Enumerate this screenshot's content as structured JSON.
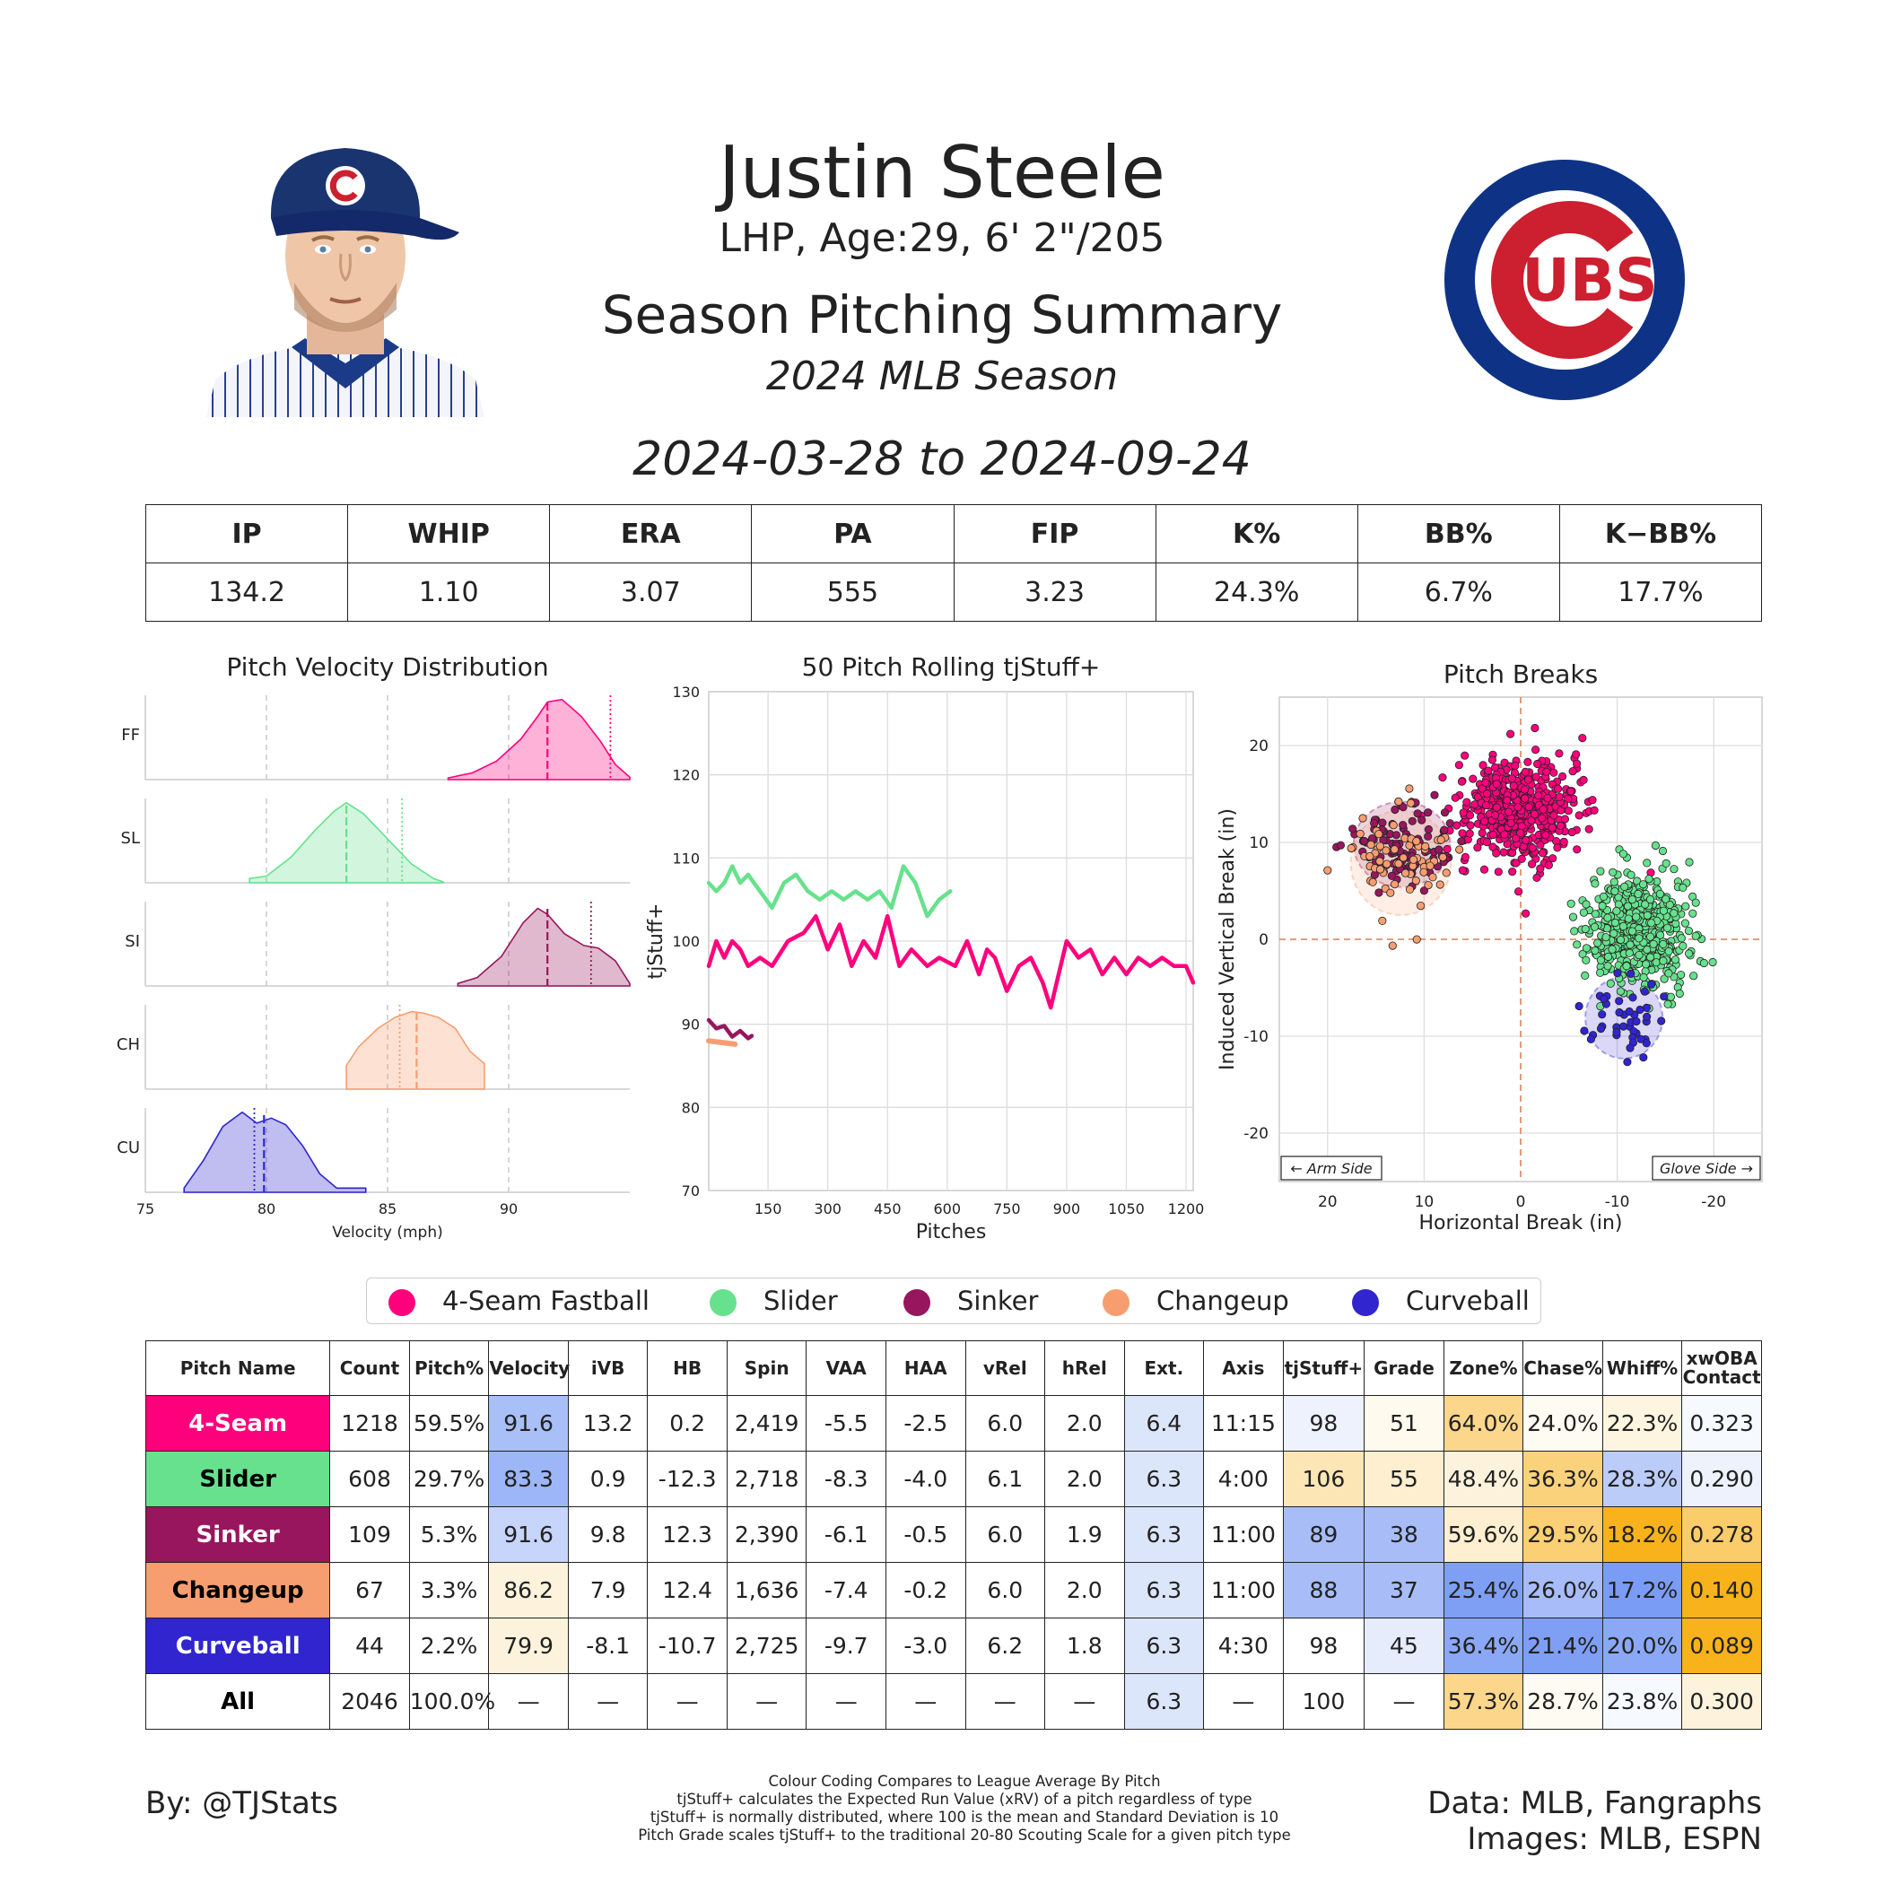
{
  "header": {
    "player_name": "Justin Steele",
    "bio": "LHP, Age:29, 6' 2\"/205",
    "title": "Season Pitching Summary",
    "season": "2024 MLB Season",
    "date_range": "2024-03-28 to 2024-09-24",
    "team_logo_text": "UBS"
  },
  "season_stats": {
    "headers": [
      "IP",
      "WHIP",
      "ERA",
      "PA",
      "FIP",
      "K%",
      "BB%",
      "K−BB%"
    ],
    "values": [
      "134.2",
      "1.10",
      "3.07",
      "555",
      "3.23",
      "24.3%",
      "6.7%",
      "17.7%"
    ]
  },
  "colors": {
    "FF": "#ff007d",
    "SL": "#67e18d",
    "SI": "#98165d",
    "CH": "#f79e70",
    "CU": "#3025ce"
  },
  "chart_data": [
    {
      "type": "area",
      "title": "Pitch Velocity Distribution",
      "xlabel": "Velocity (mph)",
      "ylabel": "",
      "xlim": [
        75,
        95
      ],
      "xticks": [
        "75",
        "80",
        "85",
        "90"
      ],
      "grid": true,
      "series": [
        {
          "name": "FF",
          "color": "#ff007d",
          "x": [
            87.5,
            88.5,
            89.5,
            90.5,
            91.2,
            91.6,
            92.2,
            93.0,
            93.8,
            94.4,
            95.0
          ],
          "y": [
            0.02,
            0.08,
            0.22,
            0.48,
            0.75,
            0.92,
            0.95,
            0.75,
            0.45,
            0.18,
            0.03
          ],
          "mean": 91.6,
          "league_avg": 94.2
        },
        {
          "name": "SL",
          "color": "#67e18d",
          "x": [
            79.3,
            80.0,
            81.0,
            82.0,
            82.8,
            83.3,
            84.0,
            85.0,
            86.0,
            86.9,
            87.3
          ],
          "y": [
            0.05,
            0.08,
            0.3,
            0.62,
            0.85,
            0.95,
            0.82,
            0.52,
            0.22,
            0.05,
            0.01
          ],
          "mean": 83.3,
          "league_avg": 85.6
        },
        {
          "name": "SI",
          "color": "#98165d",
          "x": [
            87.9,
            88.7,
            89.7,
            90.6,
            91.2,
            91.6,
            92.3,
            93.1,
            93.7,
            94.4,
            95.0
          ],
          "y": [
            0.03,
            0.1,
            0.35,
            0.75,
            0.92,
            0.85,
            0.62,
            0.48,
            0.45,
            0.3,
            0.03
          ],
          "mean": 91.6,
          "league_avg": 93.4
        },
        {
          "name": "CH",
          "color": "#f79e70",
          "x": [
            83.3,
            83.8,
            84.6,
            85.3,
            86.0,
            86.5,
            87.1,
            87.8,
            88.4,
            89.0
          ],
          "y": [
            0.28,
            0.5,
            0.72,
            0.85,
            0.92,
            0.9,
            0.85,
            0.72,
            0.45,
            0.3
          ],
          "mean": 86.2,
          "league_avg": 85.5
        },
        {
          "name": "CU",
          "color": "#3025ce",
          "x": [
            76.6,
            77.4,
            78.2,
            79.0,
            79.6,
            80.2,
            80.8,
            81.5,
            82.2,
            82.9,
            84.1
          ],
          "y": [
            0.05,
            0.38,
            0.78,
            0.95,
            0.82,
            0.88,
            0.8,
            0.55,
            0.22,
            0.05,
            0.05
          ],
          "mean": 79.9,
          "league_avg": 79.5
        }
      ]
    },
    {
      "type": "line",
      "title": "50 Pitch Rolling tjStuff+",
      "xlabel": "Pitches",
      "ylabel": "tjStuff+",
      "xlim": [
        1,
        1218
      ],
      "ylim": [
        70,
        130
      ],
      "xticks": [
        "150",
        "300",
        "450",
        "600",
        "750",
        "900",
        "1050",
        "1200"
      ],
      "yticks": [
        "70",
        "80",
        "90",
        "100",
        "110",
        "120",
        "130"
      ],
      "grid": true,
      "series": [
        {
          "name": "FF",
          "color": "#ff007d",
          "x": [
            1,
            20,
            40,
            60,
            80,
            100,
            130,
            160,
            200,
            240,
            270,
            300,
            330,
            360,
            390,
            420,
            450,
            480,
            510,
            550,
            580,
            620,
            650,
            680,
            700,
            720,
            750,
            780,
            810,
            840,
            860,
            880,
            900,
            930,
            960,
            990,
            1020,
            1050,
            1080,
            1110,
            1140,
            1170,
            1200,
            1218
          ],
          "y": [
            97,
            100,
            98,
            100,
            99,
            97,
            98,
            97,
            100,
            101,
            103,
            99,
            102,
            97,
            100,
            98,
            103,
            97,
            99,
            97,
            98,
            97,
            100,
            96,
            99,
            98,
            94,
            97,
            98,
            95,
            92,
            96,
            100,
            98,
            99,
            96,
            98,
            96,
            98,
            97,
            98,
            97,
            97,
            95
          ]
        },
        {
          "name": "SL",
          "color": "#67e18d",
          "x": [
            1,
            20,
            40,
            60,
            80,
            100,
            130,
            160,
            190,
            220,
            250,
            280,
            310,
            340,
            370,
            400,
            430,
            460,
            490,
            520,
            550,
            580,
            608
          ],
          "y": [
            107,
            106,
            107,
            109,
            107,
            108,
            106,
            104,
            107,
            108,
            106,
            105,
            106,
            105,
            106,
            105,
            106,
            104,
            109,
            107,
            103,
            105,
            106
          ]
        },
        {
          "name": "SI",
          "color": "#98165d",
          "x": [
            1,
            20,
            40,
            60,
            80,
            100,
            109
          ],
          "y": [
            90.5,
            89.5,
            89.8,
            88.5,
            89.2,
            88.3,
            88.6
          ]
        },
        {
          "name": "CH",
          "color": "#f79e70",
          "x": [
            1,
            67
          ],
          "y": [
            88,
            87.6
          ]
        }
      ]
    },
    {
      "type": "scatter",
      "title": "Pitch Breaks",
      "xlabel": "Horizontal Break (in)",
      "ylabel": "Induced Vertical Break (in)",
      "xlim": [
        25,
        -25
      ],
      "ylim": [
        -25,
        25
      ],
      "xticks": [
        "20",
        "10",
        "0",
        "-10",
        "-20"
      ],
      "yticks": [
        "20",
        "10",
        "0",
        "-10",
        "-20"
      ],
      "annotations": [
        "← Arm Side",
        "Glove Side →"
      ],
      "grid": true,
      "series": [
        {
          "name": "FF",
          "color": "#ff007d",
          "center": [
            0.2,
            13.2
          ],
          "spread": [
            3.2,
            2.6
          ],
          "count": 1218
        },
        {
          "name": "SL",
          "color": "#67e18d",
          "center": [
            -12.3,
            0.9
          ],
          "spread": [
            2.6,
            2.9
          ],
          "count": 608
        },
        {
          "name": "SI",
          "color": "#98165d",
          "center": [
            12.3,
            9.8
          ],
          "spread": [
            2.5,
            2.2
          ],
          "count": 109
        },
        {
          "name": "CH",
          "color": "#f79e70",
          "center": [
            12.4,
            7.9
          ],
          "spread": [
            2.6,
            2.7
          ],
          "count": 67
        },
        {
          "name": "CU",
          "color": "#3025ce",
          "center": [
            -10.7,
            -8.1
          ],
          "spread": [
            2.0,
            2.1
          ],
          "count": 44
        }
      ]
    }
  ],
  "legend": [
    {
      "label": "4-Seam Fastball",
      "color": "#ff007d"
    },
    {
      "label": "Slider",
      "color": "#67e18d"
    },
    {
      "label": "Sinker",
      "color": "#98165d"
    },
    {
      "label": "Changeup",
      "color": "#f79e70"
    },
    {
      "label": "Curveball",
      "color": "#3025ce"
    }
  ],
  "pitch_table": {
    "headers": [
      "Pitch Name",
      "Count",
      "Pitch%",
      "Velocity",
      "iVB",
      "HB",
      "Spin",
      "VAA",
      "HAA",
      "vRel",
      "hRel",
      "Ext.",
      "Axis",
      "tjStuff+",
      "Grade",
      "Zone%",
      "Chase%",
      "Whiff%",
      "xwOBA Contact"
    ],
    "rows": [
      {
        "name": "4-Seam",
        "bg": "#ff007d",
        "fg": "#ffffff",
        "cells": [
          "1218",
          "59.5%",
          "91.6",
          "13.2",
          "0.2",
          "2,419",
          "-5.5",
          "-2.5",
          "6.0",
          "2.0",
          "6.4",
          "11:15",
          "98",
          "51",
          "64.0%",
          "24.0%",
          "22.3%",
          "0.323"
        ],
        "shades": [
          "",
          "",
          "#a9bff8",
          "",
          "",
          "",
          "",
          "",
          "",
          "",
          "#dce6fb",
          "",
          "#eef2fd",
          "#fefaee",
          "#fcd78b",
          "#fefbf2",
          "#fdf5df",
          "#f6f9fe"
        ]
      },
      {
        "name": "Slider",
        "bg": "#67e18d",
        "fg": "#000000",
        "cells": [
          "608",
          "29.7%",
          "83.3",
          "0.9",
          "-12.3",
          "2,718",
          "-8.3",
          "-4.0",
          "6.1",
          "2.0",
          "6.3",
          "4:00",
          "106",
          "55",
          "48.4%",
          "36.3%",
          "28.3%",
          "0.290"
        ],
        "shades": [
          "",
          "",
          "#9cb6f7",
          "",
          "",
          "",
          "",
          "",
          "",
          "",
          "#dce6fb",
          "",
          "#fde6b6",
          "#fdefcf",
          "#fdf3dc",
          "#fbd27c",
          "#bcccf9",
          "#edf2fd"
        ]
      },
      {
        "name": "Sinker",
        "bg": "#98165d",
        "fg": "#ffffff",
        "cells": [
          "109",
          "5.3%",
          "91.6",
          "9.8",
          "12.3",
          "2,390",
          "-6.1",
          "-0.5",
          "6.0",
          "1.9",
          "6.3",
          "11:00",
          "89",
          "38",
          "59.6%",
          "29.5%",
          "18.2%",
          "0.278"
        ],
        "shades": [
          "",
          "",
          "#c7d5fa",
          "",
          "",
          "",
          "",
          "",
          "",
          "",
          "#dce6fb",
          "",
          "#a8bdf8",
          "#a8bdf8",
          "#fdefcf",
          "#fbcf73",
          "#f8b21b",
          "#fbcc6a"
        ]
      },
      {
        "name": "Changeup",
        "bg": "#f79e70",
        "fg": "#000000",
        "cells": [
          "67",
          "3.3%",
          "86.2",
          "7.9",
          "12.4",
          "1,636",
          "-7.4",
          "-0.2",
          "6.0",
          "2.0",
          "6.3",
          "11:00",
          "88",
          "37",
          "25.4%",
          "26.0%",
          "17.2%",
          "0.140"
        ],
        "shades": [
          "",
          "",
          "#fdf3dc",
          "",
          "",
          "",
          "",
          "",
          "",
          "",
          "#dce6fb",
          "",
          "#a8bdf8",
          "#a8bdf8",
          "#7f9ff5",
          "#a7bcf8",
          "#7b9cf4",
          "#f8b21b"
        ]
      },
      {
        "name": "Curveball",
        "bg": "#3025ce",
        "fg": "#ffffff",
        "cells": [
          "44",
          "2.2%",
          "79.9",
          "-8.1",
          "-10.7",
          "2,725",
          "-9.7",
          "-3.0",
          "6.2",
          "1.8",
          "6.3",
          "4:30",
          "98",
          "45",
          "36.4%",
          "21.4%",
          "20.0%",
          "0.089"
        ],
        "shades": [
          "",
          "",
          "#fdf3dc",
          "",
          "",
          "",
          "",
          "",
          "",
          "",
          "#dce6fb",
          "",
          "#ffffff",
          "#e6ecfc",
          "#8aa8f6",
          "#7f9ff5",
          "#8aa8f6",
          "#f8b21b"
        ]
      },
      {
        "name": "All",
        "bg": "#ffffff",
        "fg": "#000000",
        "cells": [
          "2046",
          "100.0%",
          "—",
          "—",
          "—",
          "—",
          "—",
          "—",
          "—",
          "—",
          "6.3",
          "—",
          "100",
          "—",
          "57.3%",
          "28.7%",
          "23.8%",
          "0.300"
        ],
        "shades": [
          "",
          "",
          "",
          "",
          "",
          "",
          "",
          "",
          "",
          "",
          "#dce6fb",
          "",
          "",
          "",
          "#fcd78b",
          "#fefbf2",
          "#f6f9fe",
          "#fdf3dc"
        ]
      }
    ]
  },
  "footer": {
    "by": "By: @TJStats",
    "notes": [
      "Colour Coding Compares to League Average By Pitch",
      "tjStuff+ calculates the Expected Run Value (xRV) of a pitch regardless of type",
      "tjStuff+ is normally distributed, where 100 is the mean and Standard Deviation is 10",
      "Pitch Grade scales tjStuff+ to the traditional 20-80 Scouting Scale for a given pitch type"
    ],
    "data_source": "Data: MLB, Fangraphs",
    "image_source": "Images: MLB, ESPN"
  }
}
